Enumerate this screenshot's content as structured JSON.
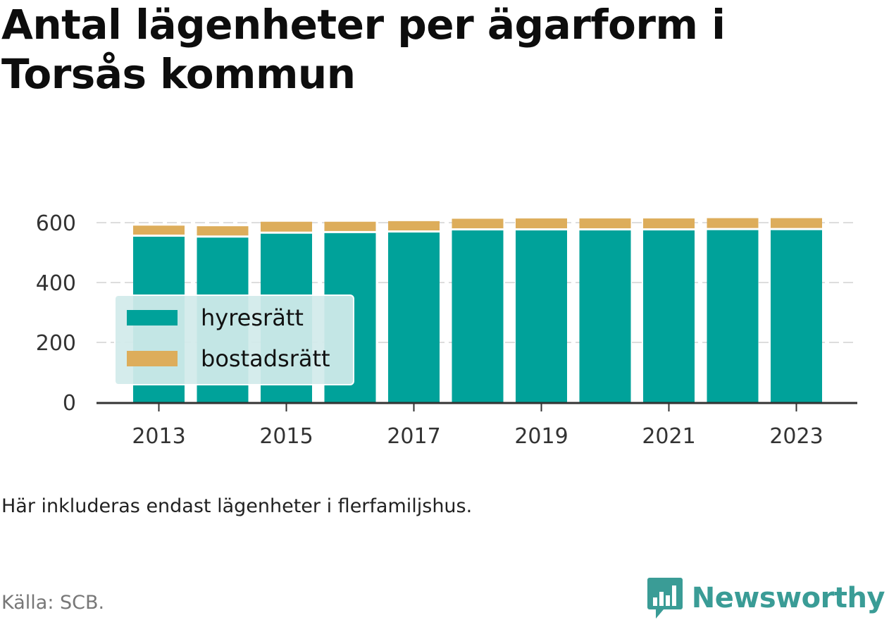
{
  "title": "Antal lägenheter per ägarform i Torsås kommun",
  "note": "Här inkluderas endast lägenheter i flerfamiljshus.",
  "source": "Källa: SCB.",
  "brand": {
    "name": "Newsworthy",
    "icon": "newsworthy-logo-icon",
    "color": "#3a9c96"
  },
  "colors": {
    "hyresratt": "#00a29a",
    "bostadsratt": "#ddad5b"
  },
  "chart_data": {
    "type": "bar",
    "stacked": true,
    "x": [
      2013,
      2014,
      2015,
      2016,
      2017,
      2018,
      2019,
      2020,
      2021,
      2022,
      2023
    ],
    "x_tick_labels": [
      "2013",
      "2015",
      "2017",
      "2019",
      "2021",
      "2023"
    ],
    "y_tick_labels": [
      "0",
      "200",
      "400",
      "600"
    ],
    "ylim": [
      0,
      620
    ],
    "grid": true,
    "legend_position": "inside-left",
    "series": [
      {
        "name": "hyresrätt",
        "color": "#00a29a",
        "values": [
          553,
          550,
          563,
          565,
          567,
          574,
          574,
          574,
          574,
          575,
          575
        ]
      },
      {
        "name": "bostadsrätt",
        "color": "#ddad5b",
        "values": [
          37,
          38,
          40,
          38,
          38,
          39,
          40,
          40,
          40,
          40,
          40
        ]
      }
    ]
  }
}
